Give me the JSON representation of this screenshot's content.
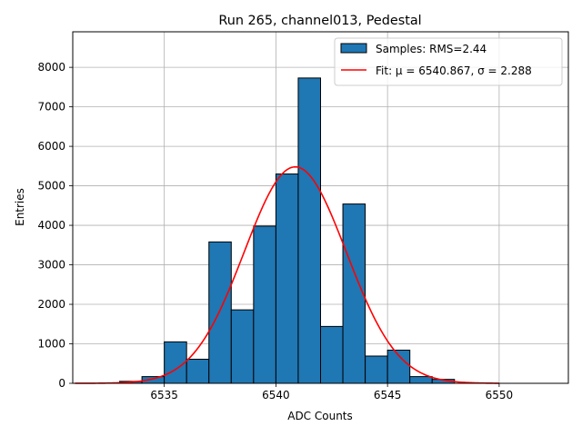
{
  "chart_data": {
    "type": "bar",
    "title": "Run 265, channel013, Pedestal",
    "xlabel": "ADC Counts",
    "ylabel": "Entries",
    "xlim": [
      6530.9,
      6553.1
    ],
    "ylim": [
      0,
      8900
    ],
    "grid": true,
    "legend_position": "top-right",
    "x_ticks": [
      6535,
      6540,
      6545,
      6550
    ],
    "y_ticks": [
      0,
      1000,
      2000,
      3000,
      4000,
      5000,
      6000,
      7000,
      8000
    ],
    "bin_edges": [
      6532,
      6533,
      6534,
      6535,
      6536,
      6537,
      6538,
      6539,
      6540,
      6541,
      6542,
      6543,
      6544,
      6545,
      6546,
      6547,
      6548,
      6549,
      6550
    ],
    "series": [
      {
        "name": "Samples: RMS=2.44",
        "kind": "histogram",
        "color": "#1f77b4",
        "edgecolor": "#000000",
        "values": [
          0,
          50,
          170,
          1050,
          610,
          3580,
          1860,
          3980,
          5300,
          7730,
          1440,
          4540,
          690,
          840,
          170,
          100,
          0,
          0
        ]
      },
      {
        "name": "Fit: μ = 6540.867, σ = 2.288",
        "kind": "gaussian-fit",
        "color": "#ff0000",
        "mu": 6540.867,
        "sigma": 2.288,
        "amplitude": 5480,
        "x_range": [
          6531,
          6550
        ]
      }
    ]
  }
}
